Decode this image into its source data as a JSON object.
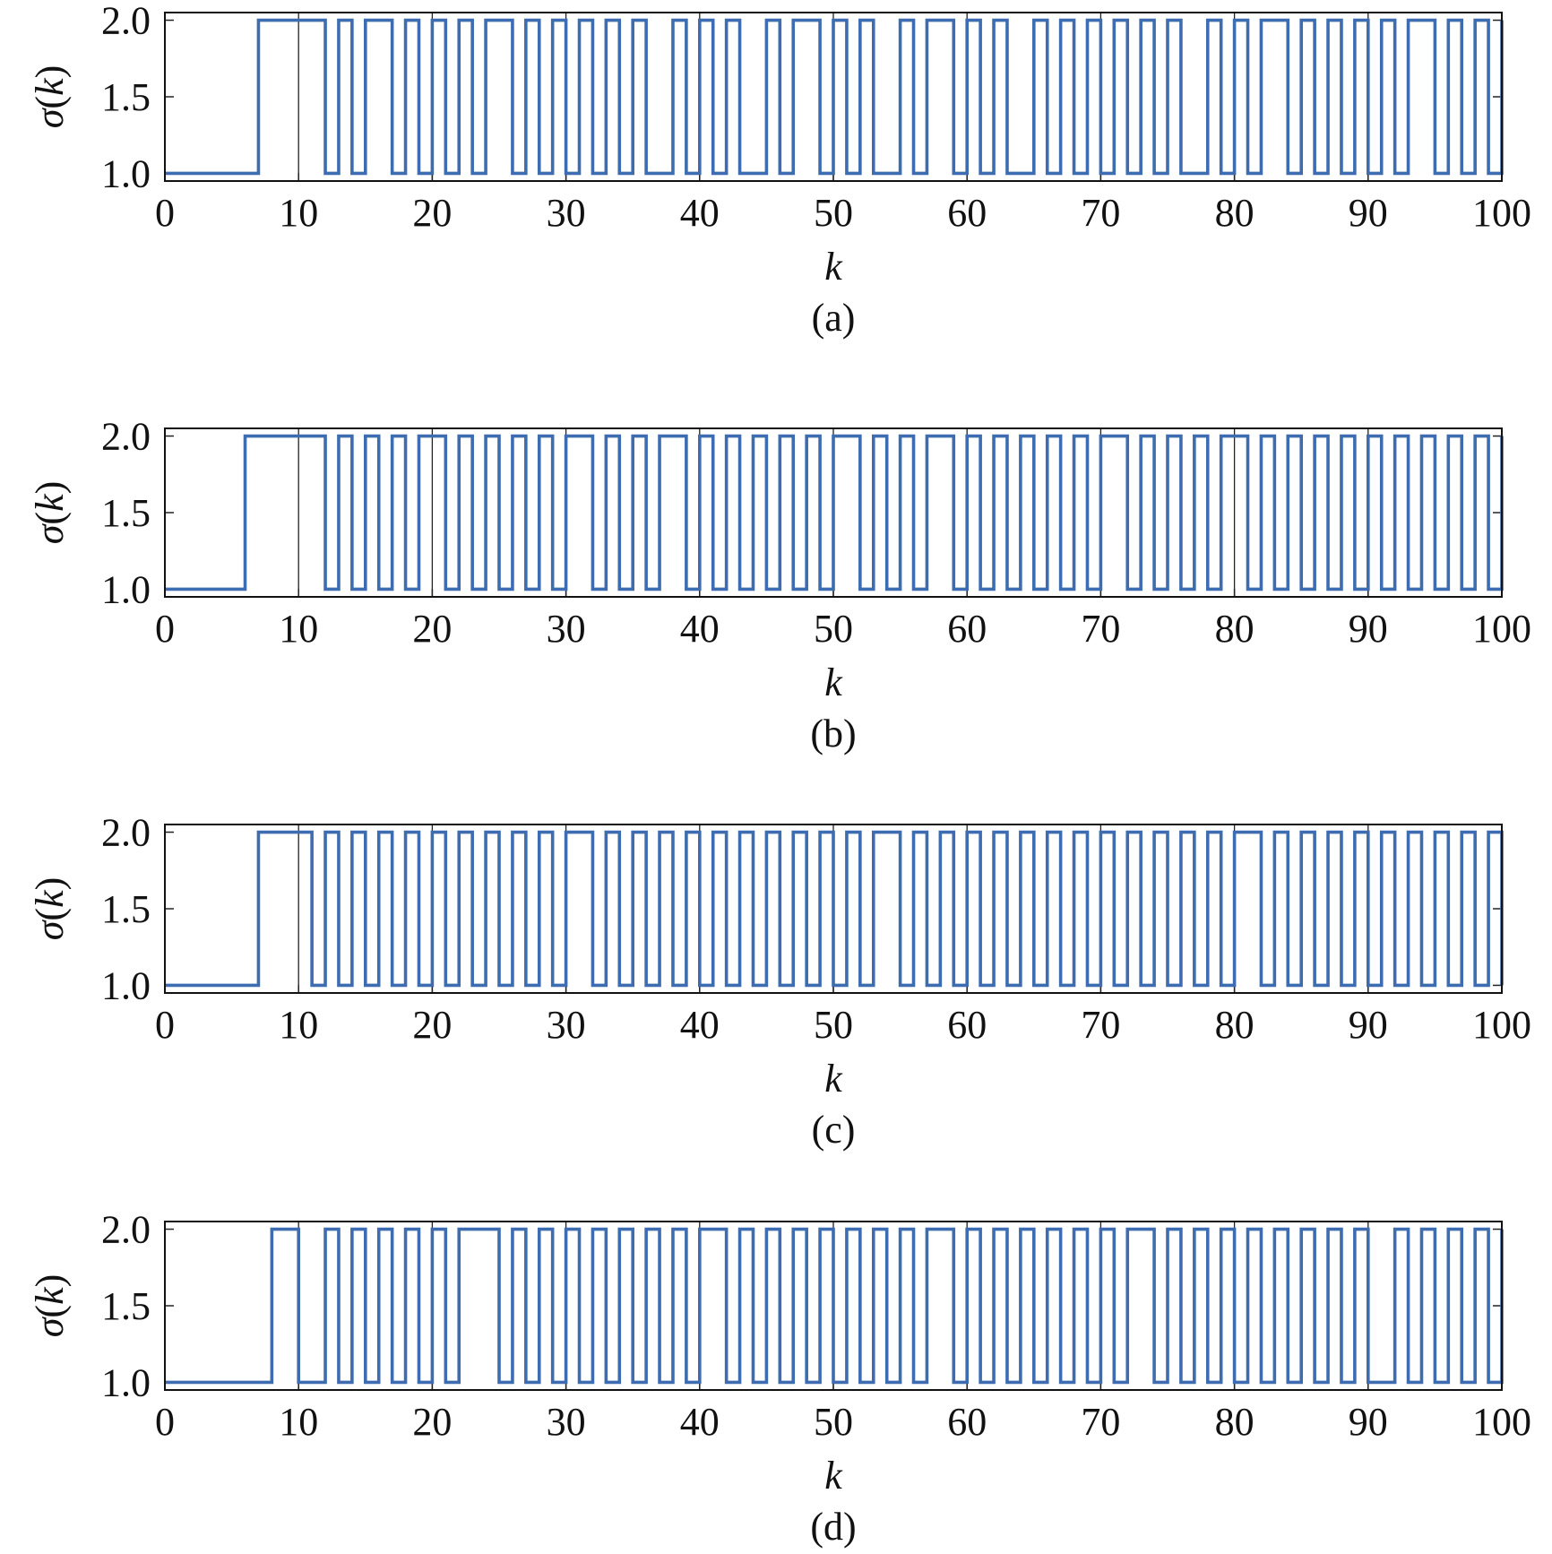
{
  "chart_data": [
    {
      "type": "line",
      "step": true,
      "caption": "(a)",
      "xlabel": "k",
      "ylabel": "σ(k)",
      "xlim": [
        0,
        100
      ],
      "ylim": [
        0.95,
        2.05
      ],
      "xticks": [
        "0",
        "10",
        "20",
        "30",
        "40",
        "50",
        "60",
        "70",
        "80",
        "90",
        "100"
      ],
      "yticks": [
        "1.0",
        "1.5",
        "2.0"
      ],
      "grid": true,
      "color": "#3d6cb1",
      "x": [
        0,
        7,
        12,
        13,
        14,
        15,
        17,
        18,
        19,
        20,
        21,
        22,
        23,
        24,
        26,
        27,
        28,
        29,
        30,
        31,
        32,
        33,
        34,
        35,
        36,
        38,
        39,
        40,
        41,
        42,
        43,
        45,
        46,
        47,
        49,
        50,
        51,
        52,
        53,
        55,
        56,
        57,
        59,
        60,
        61,
        62,
        63,
        65,
        66,
        67,
        68,
        69,
        70,
        71,
        72,
        73,
        74,
        75,
        76,
        78,
        79,
        80,
        81,
        82,
        84,
        85,
        86,
        87,
        88,
        89,
        90,
        91,
        92,
        93,
        95,
        96,
        97,
        98,
        99,
        100
      ],
      "values": [
        1,
        2,
        1,
        2,
        1,
        2,
        1,
        2,
        1,
        2,
        1,
        2,
        1,
        2,
        1,
        2,
        1,
        2,
        1,
        2,
        1,
        2,
        1,
        2,
        1,
        2,
        1,
        2,
        1,
        2,
        1,
        2,
        1,
        2,
        1,
        2,
        1,
        2,
        1,
        2,
        1,
        2,
        1,
        2,
        1,
        2,
        1,
        2,
        1,
        2,
        1,
        2,
        1,
        2,
        1,
        2,
        1,
        2,
        1,
        2,
        1,
        2,
        1,
        2,
        1,
        2,
        1,
        2,
        1,
        2,
        1,
        2,
        1,
        2,
        1,
        2,
        1,
        2,
        1,
        2
      ]
    },
    {
      "type": "line",
      "step": true,
      "caption": "(b)",
      "xlabel": "k",
      "ylabel": "σ(k)",
      "xlim": [
        0,
        100
      ],
      "ylim": [
        0.95,
        2.05
      ],
      "xticks": [
        "0",
        "10",
        "20",
        "30",
        "40",
        "50",
        "60",
        "70",
        "80",
        "90",
        "100"
      ],
      "yticks": [
        "1.0",
        "1.5",
        "2.0"
      ],
      "grid": true,
      "color": "#3d6cb1",
      "x": [
        0,
        6,
        12,
        13,
        14,
        15,
        16,
        17,
        18,
        19,
        21,
        22,
        23,
        24,
        25,
        26,
        27,
        28,
        29,
        30,
        32,
        33,
        34,
        35,
        36,
        37,
        39,
        40,
        41,
        42,
        43,
        44,
        45,
        46,
        47,
        48,
        49,
        50,
        52,
        53,
        54,
        55,
        56,
        57,
        59,
        60,
        61,
        62,
        63,
        64,
        65,
        66,
        67,
        68,
        69,
        70,
        72,
        73,
        74,
        75,
        76,
        77,
        78,
        79,
        81,
        82,
        83,
        84,
        85,
        86,
        87,
        88,
        89,
        90,
        91,
        92,
        93,
        94,
        95,
        96,
        97,
        98,
        99,
        100
      ],
      "values": [
        1,
        2,
        1,
        2,
        1,
        2,
        1,
        2,
        1,
        2,
        1,
        2,
        1,
        2,
        1,
        2,
        1,
        2,
        1,
        2,
        1,
        2,
        1,
        2,
        1,
        2,
        1,
        2,
        1,
        2,
        1,
        2,
        1,
        2,
        1,
        2,
        1,
        2,
        1,
        2,
        1,
        2,
        1,
        2,
        1,
        2,
        1,
        2,
        1,
        2,
        1,
        2,
        1,
        2,
        1,
        2,
        1,
        2,
        1,
        2,
        1,
        2,
        1,
        2,
        1,
        2,
        1,
        2,
        1,
        2,
        1,
        2,
        1,
        2,
        1,
        2,
        1,
        2,
        1,
        2,
        1,
        2,
        1,
        2
      ]
    },
    {
      "type": "line",
      "step": true,
      "caption": "(c)",
      "xlabel": "k",
      "ylabel": "σ(k)",
      "xlim": [
        0,
        100
      ],
      "ylim": [
        0.95,
        2.05
      ],
      "xticks": [
        "0",
        "10",
        "20",
        "30",
        "40",
        "50",
        "60",
        "70",
        "80",
        "90",
        "100"
      ],
      "yticks": [
        "1.0",
        "1.5",
        "2.0"
      ],
      "grid": true,
      "color": "#3d6cb1",
      "x": [
        0,
        7,
        11,
        12,
        13,
        14,
        15,
        16,
        17,
        18,
        19,
        20,
        21,
        22,
        23,
        24,
        25,
        26,
        27,
        28,
        29,
        30,
        32,
        33,
        34,
        35,
        36,
        37,
        38,
        39,
        40,
        41,
        42,
        43,
        44,
        45,
        46,
        47,
        48,
        49,
        50,
        51,
        52,
        53,
        55,
        56,
        57,
        58,
        59,
        60,
        61,
        62,
        63,
        64,
        65,
        66,
        67,
        68,
        69,
        70,
        71,
        72,
        73,
        74,
        75,
        76,
        77,
        78,
        79,
        80,
        82,
        83,
        84,
        85,
        86,
        87,
        88,
        89,
        90,
        91,
        92,
        93,
        94,
        95,
        96,
        97,
        98,
        99,
        100
      ],
      "values": [
        1,
        2,
        1,
        2,
        1,
        2,
        1,
        2,
        1,
        2,
        1,
        2,
        1,
        2,
        1,
        2,
        1,
        2,
        1,
        2,
        1,
        2,
        1,
        2,
        1,
        2,
        1,
        2,
        1,
        2,
        1,
        2,
        1,
        2,
        1,
        2,
        1,
        2,
        1,
        2,
        1,
        2,
        1,
        2,
        1,
        2,
        1,
        2,
        1,
        2,
        1,
        2,
        1,
        2,
        1,
        2,
        1,
        2,
        1,
        2,
        1,
        2,
        1,
        2,
        1,
        2,
        1,
        2,
        1,
        2,
        1,
        2,
        1,
        2,
        1,
        2,
        1,
        2,
        1,
        2,
        1,
        2,
        1,
        2,
        1,
        2,
        1,
        2,
        1
      ]
    },
    {
      "type": "line",
      "step": true,
      "caption": "(d)",
      "xlabel": "k",
      "ylabel": "σ(k)",
      "xlim": [
        0,
        100
      ],
      "ylim": [
        0.95,
        2.05
      ],
      "xticks": [
        "0",
        "10",
        "20",
        "30",
        "40",
        "50",
        "60",
        "70",
        "80",
        "90",
        "100"
      ],
      "yticks": [
        "1.0",
        "1.5",
        "2.0"
      ],
      "grid": true,
      "color": "#3d6cb1",
      "x": [
        0,
        8,
        10,
        12,
        13,
        14,
        15,
        16,
        17,
        18,
        19,
        20,
        21,
        22,
        25,
        26,
        27,
        28,
        29,
        30,
        31,
        32,
        33,
        34,
        35,
        36,
        37,
        38,
        39,
        40,
        42,
        43,
        44,
        45,
        46,
        47,
        48,
        49,
        50,
        51,
        52,
        53,
        54,
        55,
        56,
        57,
        59,
        60,
        61,
        62,
        63,
        64,
        65,
        66,
        67,
        68,
        69,
        70,
        71,
        72,
        74,
        75,
        76,
        77,
        78,
        79,
        80,
        81,
        82,
        83,
        84,
        85,
        86,
        87,
        88,
        89,
        90,
        92,
        93,
        94,
        95,
        96,
        97,
        98,
        99,
        100
      ],
      "values": [
        1,
        2,
        1,
        2,
        1,
        2,
        1,
        2,
        1,
        2,
        1,
        2,
        1,
        2,
        1,
        2,
        1,
        2,
        1,
        2,
        1,
        2,
        1,
        2,
        1,
        2,
        1,
        2,
        1,
        2,
        1,
        2,
        1,
        2,
        1,
        2,
        1,
        2,
        1,
        2,
        1,
        2,
        1,
        2,
        1,
        2,
        1,
        2,
        1,
        2,
        1,
        2,
        1,
        2,
        1,
        2,
        1,
        2,
        1,
        2,
        1,
        2,
        1,
        2,
        1,
        2,
        1,
        2,
        1,
        2,
        1,
        2,
        1,
        2,
        1,
        2,
        1,
        2,
        1,
        2,
        1,
        2,
        1,
        2,
        1,
        2
      ]
    }
  ]
}
